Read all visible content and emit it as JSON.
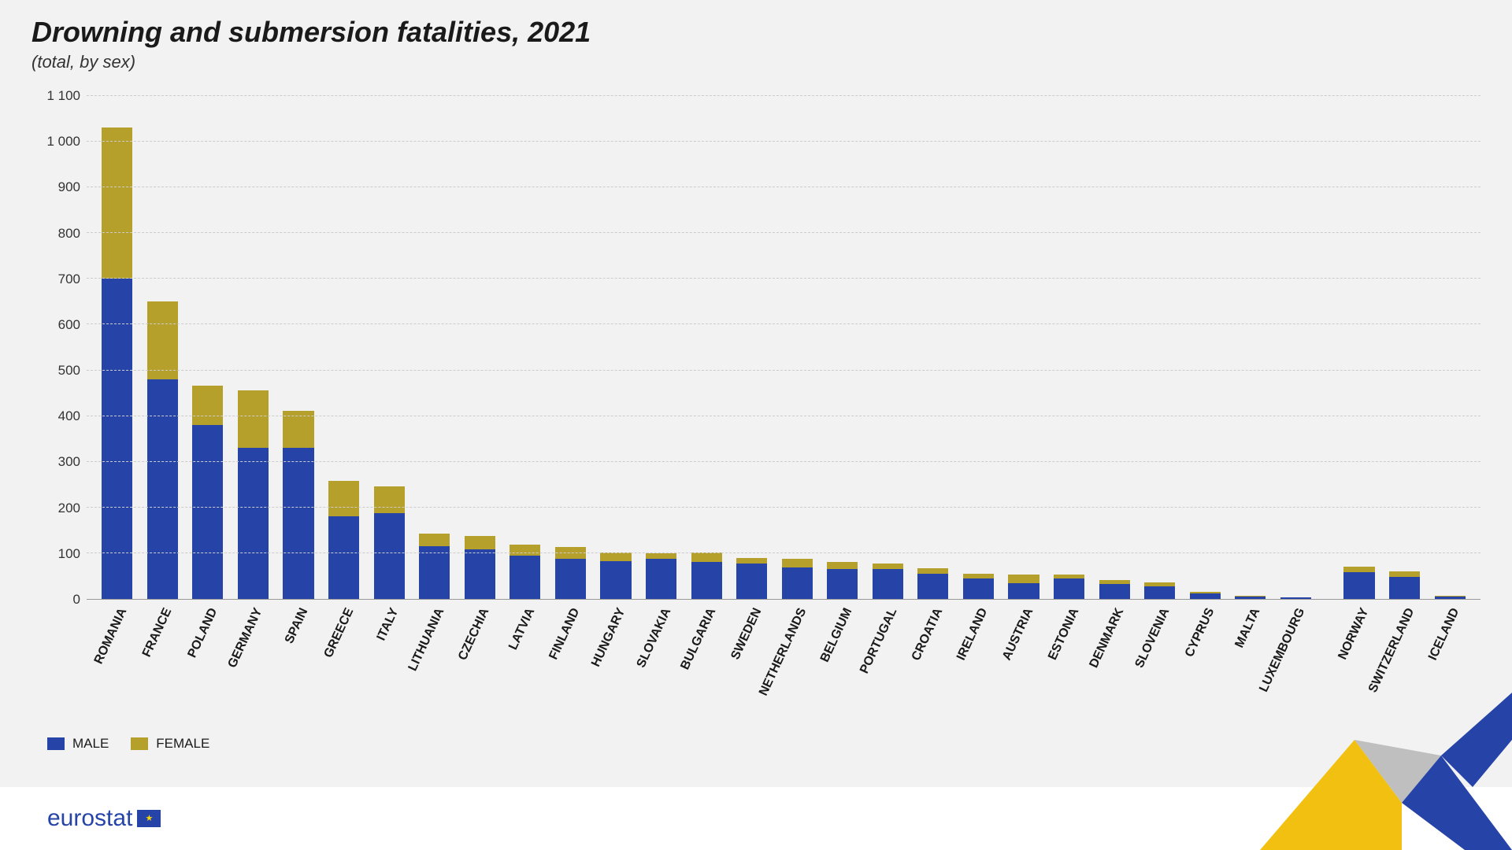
{
  "title": "Drowning and submersion fatalities, 2021",
  "subtitle": "(total, by sex)",
  "chart": {
    "type": "stacked-bar",
    "y_max": 1100,
    "y_ticks": [
      0,
      100,
      200,
      300,
      400,
      500,
      600,
      700,
      800,
      900,
      1000,
      1100
    ],
    "y_tick_labels": [
      "0",
      "100",
      "200",
      "300",
      "400",
      "500",
      "600",
      "700",
      "800",
      "900",
      "1 000",
      "1 100"
    ],
    "grid_color": "#cccccc",
    "background_color": "#f2f2f2",
    "bar_width_ratio": 0.68,
    "label_fontsize": 16,
    "tick_fontsize": 17,
    "series": [
      {
        "key": "male",
        "label": "MALE",
        "color": "#2644a7"
      },
      {
        "key": "female",
        "label": "FEMALE",
        "color": "#b5a02b"
      }
    ],
    "spacer_after_index": 26,
    "countries": [
      {
        "name": "ROMANIA",
        "male": 700,
        "female": 330
      },
      {
        "name": "FRANCE",
        "male": 480,
        "female": 170
      },
      {
        "name": "POLAND",
        "male": 380,
        "female": 85
      },
      {
        "name": "GERMANY",
        "male": 330,
        "female": 125
      },
      {
        "name": "SPAIN",
        "male": 330,
        "female": 80
      },
      {
        "name": "GREECE",
        "male": 180,
        "female": 78
      },
      {
        "name": "ITALY",
        "male": 188,
        "female": 58
      },
      {
        "name": "LITHUANIA",
        "male": 115,
        "female": 28
      },
      {
        "name": "CZECHIA",
        "male": 108,
        "female": 30
      },
      {
        "name": "LATVIA",
        "male": 95,
        "female": 23
      },
      {
        "name": "FINLAND",
        "male": 88,
        "female": 25
      },
      {
        "name": "HUNGARY",
        "male": 82,
        "female": 20
      },
      {
        "name": "SLOVAKIA",
        "male": 88,
        "female": 12
      },
      {
        "name": "BULGARIA",
        "male": 80,
        "female": 22
      },
      {
        "name": "SWEDEN",
        "male": 78,
        "female": 12
      },
      {
        "name": "NETHERLANDS",
        "male": 68,
        "female": 20
      },
      {
        "name": "BELGIUM",
        "male": 65,
        "female": 15
      },
      {
        "name": "PORTUGAL",
        "male": 65,
        "female": 12
      },
      {
        "name": "CROATIA",
        "male": 55,
        "female": 12
      },
      {
        "name": "IRELAND",
        "male": 45,
        "female": 10
      },
      {
        "name": "AUSTRIA",
        "male": 35,
        "female": 18
      },
      {
        "name": "ESTONIA",
        "male": 45,
        "female": 8
      },
      {
        "name": "DENMARK",
        "male": 32,
        "female": 10
      },
      {
        "name": "SLOVENIA",
        "male": 28,
        "female": 8
      },
      {
        "name": "CYPRUS",
        "male": 12,
        "female": 3
      },
      {
        "name": "MALTA",
        "male": 5,
        "female": 2
      },
      {
        "name": "LUXEMBOURG",
        "male": 3,
        "female": 1
      },
      {
        "name": "NORWAY",
        "male": 58,
        "female": 12
      },
      {
        "name": "SWITZERLAND",
        "male": 48,
        "female": 12
      },
      {
        "name": "ICELAND",
        "male": 5,
        "female": 2
      }
    ]
  },
  "footer": {
    "logo_text": "eurostat",
    "background_color": "#ffffff"
  },
  "decoration": {
    "colors": {
      "yellow": "#f2c010",
      "grey": "#bfbfbf",
      "blue": "#2644a7"
    }
  }
}
